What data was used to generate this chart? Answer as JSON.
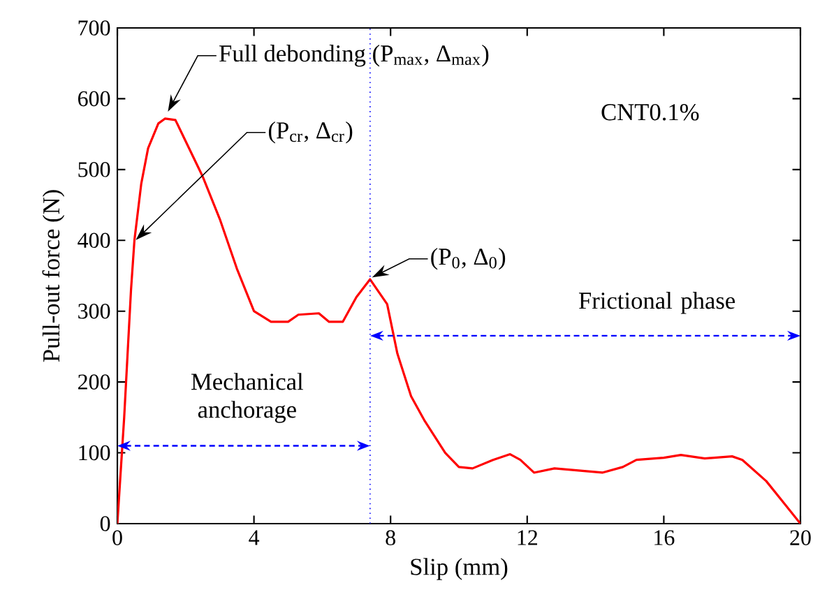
{
  "chart_data": {
    "type": "line",
    "xlabel": "Slip (mm)",
    "ylabel": "Pull-out force (N)",
    "xlim": [
      0,
      20
    ],
    "ylim": [
      0,
      700
    ],
    "xticks": [
      0,
      4,
      8,
      12,
      16,
      20
    ],
    "yticks": [
      0,
      100,
      200,
      300,
      400,
      500,
      600,
      700
    ],
    "grid": false,
    "marker": "none",
    "line_style": "solid",
    "x": [
      0,
      0.2,
      0.4,
      0.5,
      0.7,
      0.9,
      1.2,
      1.4,
      1.7,
      2.0,
      2.5,
      3.0,
      3.5,
      4.0,
      4.5,
      5.0,
      5.3,
      5.9,
      6.2,
      6.6,
      7.0,
      7.4,
      7.9,
      8.2,
      8.6,
      9.0,
      9.6,
      10.0,
      10.4,
      11.0,
      11.5,
      11.8,
      12.2,
      12.8,
      13.5,
      14.2,
      14.8,
      15.2,
      16.0,
      16.5,
      17.2,
      18.0,
      18.3,
      19.0,
      19.5,
      20
    ],
    "series": [
      {
        "color": "#ff0000",
        "values": [
          0,
          150,
          330,
          400,
          480,
          530,
          565,
          572,
          570,
          540,
          490,
          430,
          360,
          300,
          285,
          285,
          295,
          297,
          285,
          285,
          320,
          345,
          310,
          240,
          180,
          145,
          100,
          80,
          78,
          90,
          98,
          90,
          72,
          78,
          75,
          72,
          80,
          90,
          93,
          97,
          92,
          95,
          90,
          60,
          30,
          0
        ]
      }
    ],
    "ref_lines": [
      {
        "axis": "x",
        "value": 7.4,
        "color": "#0000ff",
        "line_style": "dotted"
      }
    ],
    "annotations": [
      "Full debonding (P$_{max}$, Δ$_{max}$)",
      "(P$_{cr}$, Δ$_{cr}$)",
      {
        "text": "(P$_{0}$, Δ$_{0}$)",
        "x": 7.4,
        "y": 345
      },
      "CNT0.1%",
      "Mechanical anchorage",
      "Frictional phase"
    ]
  }
}
